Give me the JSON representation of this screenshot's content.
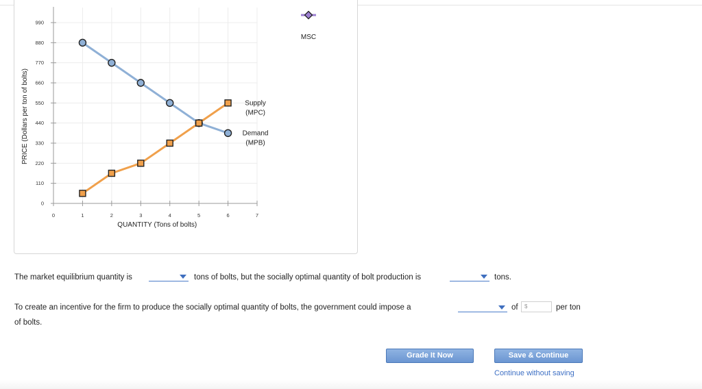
{
  "chart_data": {
    "type": "line",
    "xlabel": "QUANTITY (Tons of bolts)",
    "ylabel": "PRICE (Dollars per ton of bolts)",
    "xlim": [
      0,
      7
    ],
    "ylim": [
      0,
      990
    ],
    "x_ticks": [
      "0",
      "1",
      "2",
      "3",
      "4",
      "5",
      "6",
      "7"
    ],
    "y_ticks": [
      "0",
      "110",
      "220",
      "330",
      "440",
      "550",
      "660",
      "770",
      "880",
      "990"
    ],
    "grid": true,
    "series": [
      {
        "name": "Demand (MPB)",
        "label_lines": [
          "Demand",
          "(MPB)"
        ],
        "marker": "circle",
        "color": "#8fb0d6",
        "x": [
          1,
          2,
          3,
          4,
          5,
          6
        ],
        "y": [
          880,
          770,
          660,
          550,
          440,
          385
        ]
      },
      {
        "name": "Supply (MPC)",
        "label_lines": [
          "Supply",
          "(MPC)"
        ],
        "marker": "square",
        "color": "#f0a04b",
        "x": [
          1,
          2,
          3,
          4,
          5,
          6
        ],
        "y": [
          55,
          165,
          220,
          330,
          440,
          550
        ]
      }
    ],
    "palette_tool": {
      "label": "MSC",
      "marker": "diamond",
      "color": "#9c7fd1"
    }
  },
  "question": {
    "s1_before": "The market equilibrium quantity is",
    "s1_middle": "tons of bolts, but the socially optimal quantity of bolt production is",
    "s1_after": "tons.",
    "s2_before": "To create an incentive for the firm to produce the socially optimal quantity of bolts, the government could impose a",
    "s2_of": "of",
    "s2_dollar": "$",
    "s2_per": "per ton",
    "s2_end": "of bolts."
  },
  "buttons": {
    "grade": "Grade It Now",
    "save": "Save & Continue",
    "continue_link": "Continue without saving"
  }
}
